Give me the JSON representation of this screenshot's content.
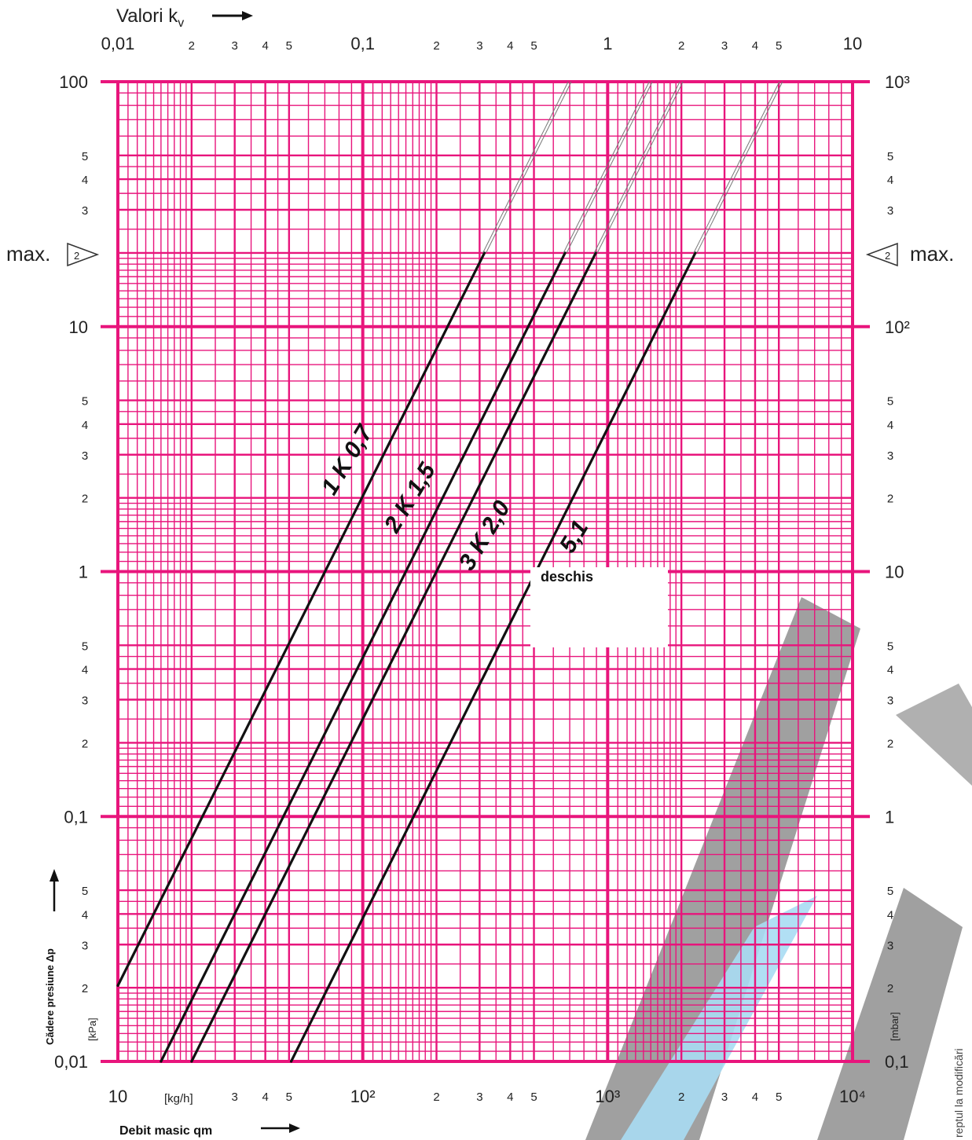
{
  "chart_data": {
    "type": "line",
    "x_axis_top": {
      "label": "Valori k",
      "label_sub": "v",
      "scale": "log",
      "range": [
        0.01,
        10
      ],
      "major_ticks": [
        "0,01",
        "0,1",
        "1",
        "10"
      ],
      "minor_ticks": [
        "2",
        "3",
        "4",
        "5"
      ]
    },
    "x_axis_bottom": {
      "label": "Debit masic qm",
      "unit": "[kg/h]",
      "scale": "log",
      "range": [
        10,
        10000
      ],
      "major_ticks": [
        "10",
        "10²",
        "10³",
        "10⁴"
      ],
      "minor_ticks": [
        "2",
        "3",
        "4",
        "5"
      ]
    },
    "y_axis_left": {
      "label": "Cădere presiune Δp",
      "unit": "[kPa]",
      "scale": "log",
      "range": [
        0.01,
        100
      ],
      "major_ticks": [
        "0,01",
        "0,1",
        "1",
        "10",
        "100"
      ],
      "minor_ticks": [
        "2",
        "3",
        "4",
        "5"
      ]
    },
    "y_axis_right": {
      "unit": "[mbar]",
      "scale": "log",
      "range": [
        0.1,
        1000
      ],
      "major_ticks": [
        "0,1",
        "1",
        "10",
        "10²",
        "10³"
      ],
      "minor_ticks": [
        "2",
        "3",
        "4",
        "5"
      ]
    },
    "max_marker": {
      "text": "max.",
      "symbol": "2",
      "y_kpa": 20
    },
    "series": [
      {
        "label": "1 K  0,7",
        "kv": 0.7,
        "start": [
          10,
          0.0204
        ],
        "solid_end": [
          314,
          20
        ],
        "dashed_end": [
          700,
          100
        ]
      },
      {
        "label": "2 K  1,5",
        "kv": 1.5,
        "start": [
          15,
          0.01
        ],
        "solid_end": [
          670,
          20
        ],
        "dashed_end": [
          1500,
          100
        ]
      },
      {
        "label": "3 K  2,0",
        "kv": 2.0,
        "start": [
          20,
          0.01
        ],
        "solid_end": [
          894,
          20
        ],
        "dashed_end": [
          2000,
          100
        ]
      },
      {
        "label": "5,1",
        "kv": 5.1,
        "start": [
          51,
          0.01
        ],
        "solid_end": [
          2280,
          20
        ],
        "dashed_end": [
          5100,
          100
        ]
      }
    ],
    "annotation": "deschis",
    "grid": true,
    "colors": {
      "grid": "#e8157c",
      "curve": "#111111",
      "watermark_gray": "#8f8f8f",
      "watermark_blue": "#a8dcf3"
    }
  },
  "watermark_text": "reptul la modificări"
}
